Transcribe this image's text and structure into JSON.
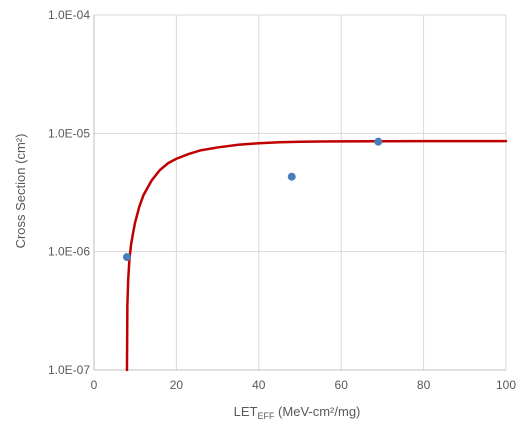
{
  "chart_data": {
    "type": "scatter",
    "xlabel": {
      "prefix": "LET",
      "subscript": "EFF",
      "suffix": " (MeV-cm²/mg)"
    },
    "ylabel": "Cross Section (cm²)",
    "xlim": [
      0,
      100
    ],
    "ylim": [
      1e-07,
      0.0001
    ],
    "yscale": "log",
    "x_ticks": [
      0,
      20,
      40,
      60,
      80,
      100
    ],
    "x_tick_labels": [
      "0",
      "20",
      "40",
      "60",
      "80",
      "100"
    ],
    "y_ticks": [
      1e-07,
      1e-06,
      1e-05,
      0.0001
    ],
    "y_tick_labels": [
      "1.0E-07",
      "1.0E-06",
      "1.0E-05",
      "1.0E-04"
    ],
    "grid": true,
    "series": [
      {
        "type": "scatter",
        "color": "#4a7ebb",
        "points": [
          {
            "x": 8.0,
            "y": 9e-07
          },
          {
            "x": 48.0,
            "y": 4.3e-06
          },
          {
            "x": 69.0,
            "y": 8.5e-06
          }
        ]
      },
      {
        "type": "line",
        "color": "#c00000",
        "points": [
          {
            "x": 8.0,
            "y": 1e-07
          },
          {
            "x": 8.1,
            "y": 3.5e-07
          },
          {
            "x": 8.3,
            "y": 5.8e-07
          },
          {
            "x": 8.6,
            "y": 8.6e-07
          },
          {
            "x": 9.0,
            "y": 1.15e-06
          },
          {
            "x": 9.5,
            "y": 1.45e-06
          },
          {
            "x": 10.0,
            "y": 1.78e-06
          },
          {
            "x": 11.0,
            "y": 2.4e-06
          },
          {
            "x": 12.0,
            "y": 3e-06
          },
          {
            "x": 14.0,
            "y": 4e-06
          },
          {
            "x": 16.0,
            "y": 4.9e-06
          },
          {
            "x": 18.0,
            "y": 5.6e-06
          },
          {
            "x": 20.0,
            "y": 6.1e-06
          },
          {
            "x": 23.0,
            "y": 6.7e-06
          },
          {
            "x": 26.0,
            "y": 7.2e-06
          },
          {
            "x": 30.0,
            "y": 7.6e-06
          },
          {
            "x": 35.0,
            "y": 8e-06
          },
          {
            "x": 40.0,
            "y": 8.25e-06
          },
          {
            "x": 45.0,
            "y": 8.4e-06
          },
          {
            "x": 50.0,
            "y": 8.48e-06
          },
          {
            "x": 55.0,
            "y": 8.52e-06
          },
          {
            "x": 60.0,
            "y": 8.55e-06
          },
          {
            "x": 70.0,
            "y": 8.58e-06
          },
          {
            "x": 80.0,
            "y": 8.6e-06
          },
          {
            "x": 90.0,
            "y": 8.6e-06
          },
          {
            "x": 100.0,
            "y": 8.6e-06
          }
        ]
      }
    ]
  }
}
